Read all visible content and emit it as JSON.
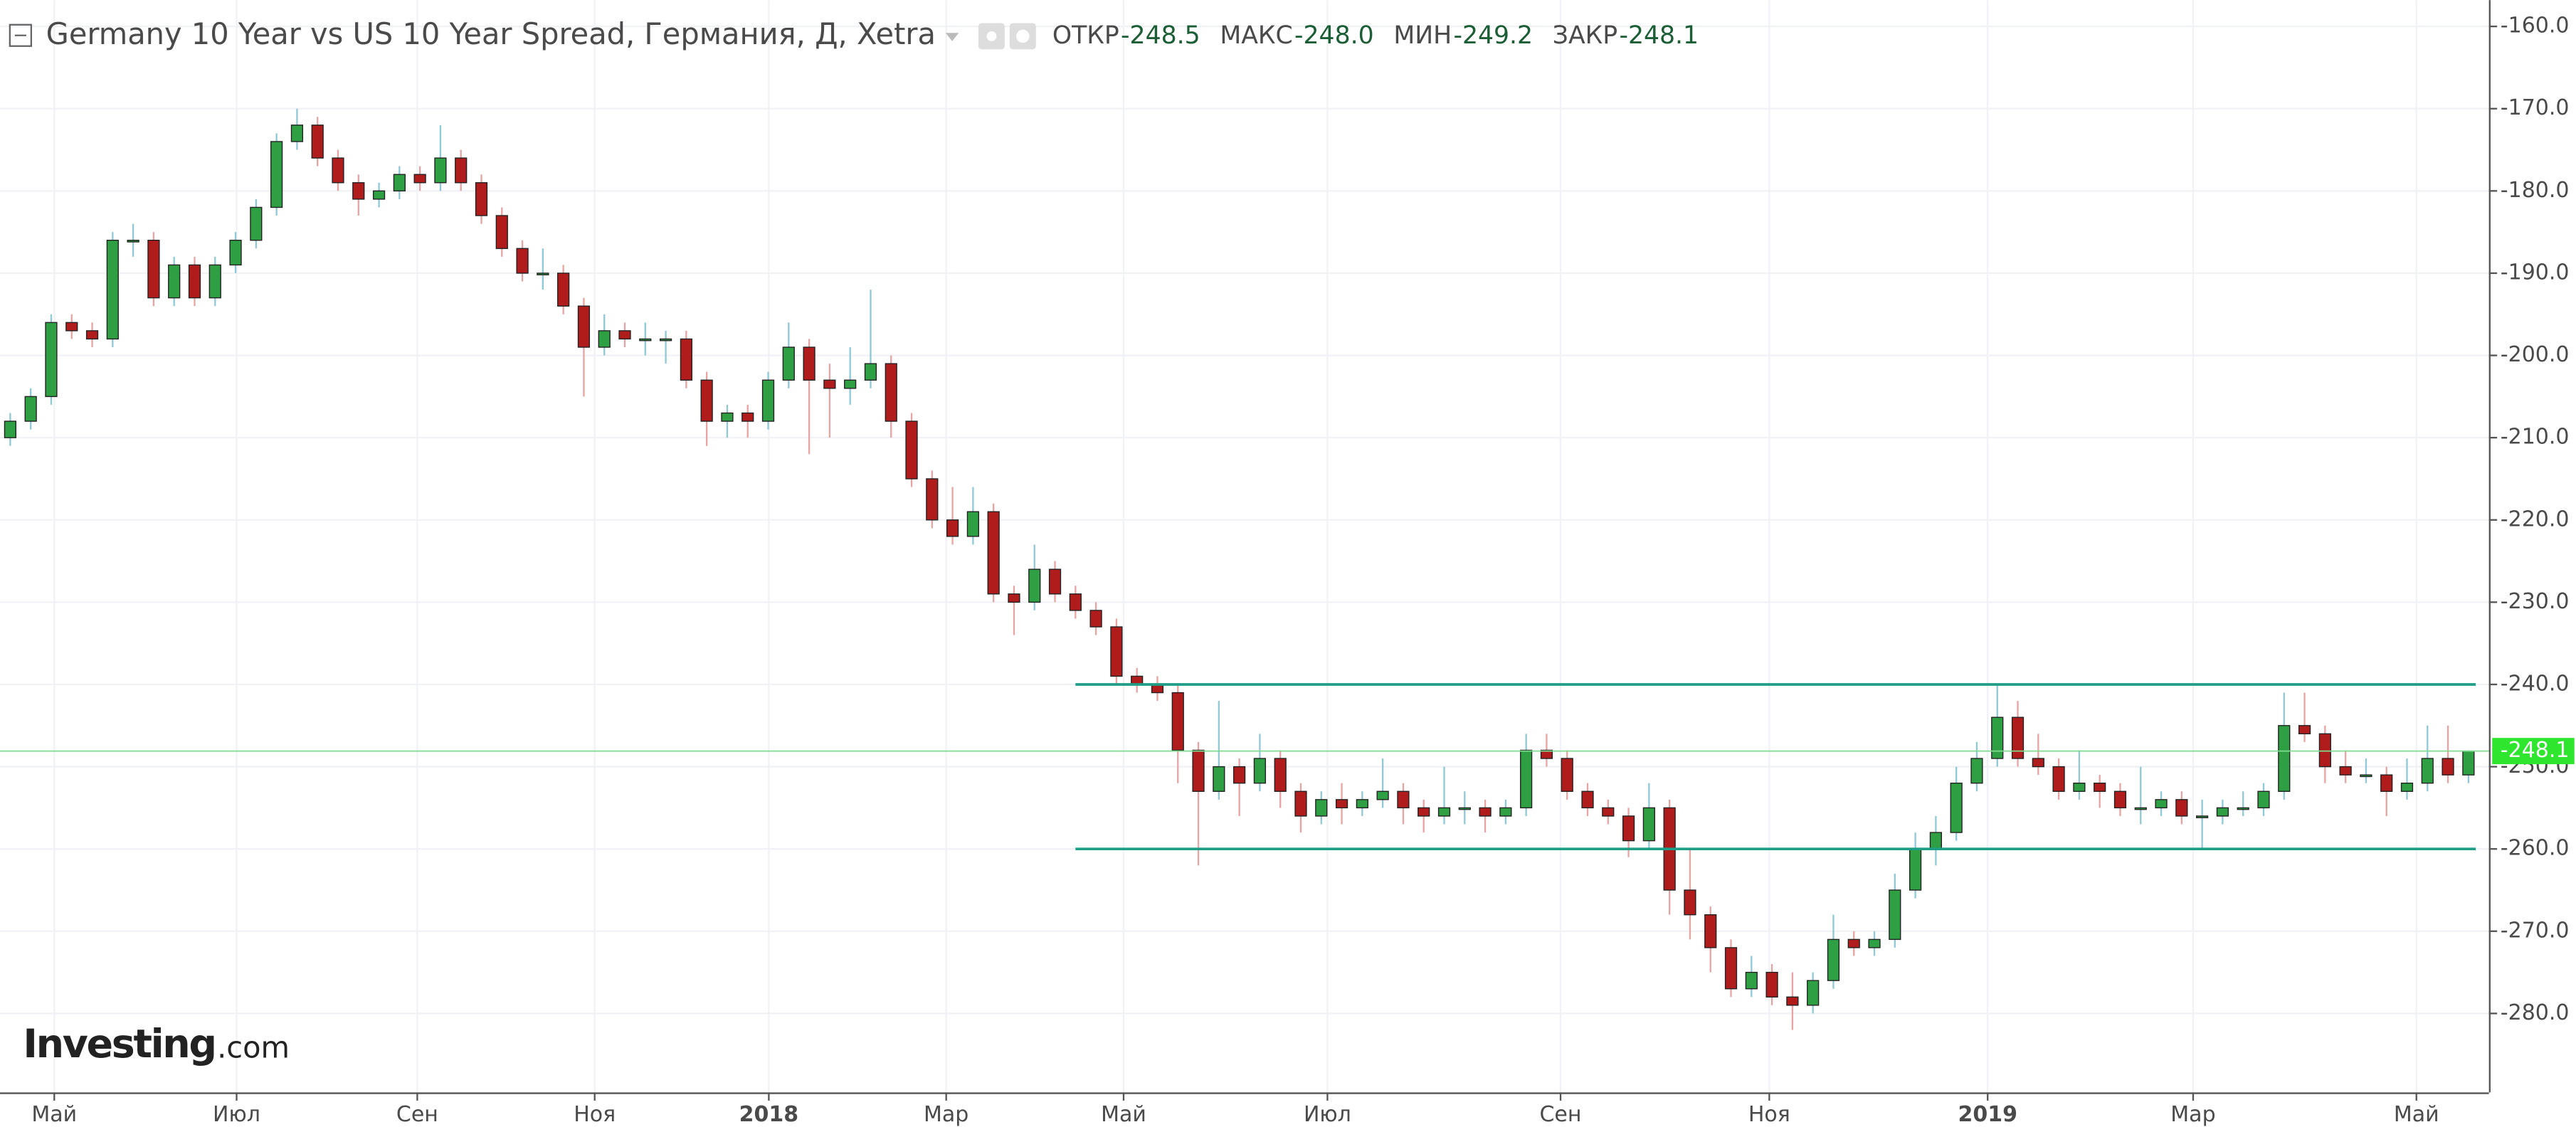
{
  "chart_data": {
    "type": "candlestick",
    "title": "Germany 10 Year vs US 10 Year Spread, Германия, Д, Xetra",
    "stats": [
      {
        "label": "ОТКР",
        "value": "-248.5"
      },
      {
        "label": "МАКС",
        "value": "-248.0"
      },
      {
        "label": "МИН",
        "value": "-249.2"
      },
      {
        "label": "ЗАКР",
        "value": "-248.1"
      }
    ],
    "logo": {
      "name": "Investing",
      "suffix": ".com"
    },
    "up_color": "#2ea043",
    "down_color": "#b01c1c",
    "line_color": "#1e9e86",
    "grid": true,
    "ylim": [
      -289.6,
      -156.8
    ],
    "yticks": [
      {
        "value": -160,
        "label": "-160.0"
      },
      {
        "value": -170,
        "label": "-170.0"
      },
      {
        "value": -180,
        "label": "-180.0"
      },
      {
        "value": -190,
        "label": "-190.0"
      },
      {
        "value": -200,
        "label": "-200.0"
      },
      {
        "value": -210,
        "label": "-210.0"
      },
      {
        "value": -220,
        "label": "-220.0"
      },
      {
        "value": -230,
        "label": "-230.0"
      },
      {
        "value": -240,
        "label": "-240.0"
      },
      {
        "value": -250,
        "label": "-250.0"
      },
      {
        "value": -260,
        "label": "-260.0"
      },
      {
        "value": -270,
        "label": "-270.0"
      },
      {
        "value": -280,
        "label": "-280.0"
      }
    ],
    "xlim": [
      -0.5,
      121
    ],
    "xticks": [
      {
        "value": 2.15,
        "label": "Май"
      },
      {
        "value": 11.05,
        "label": "Июл"
      },
      {
        "value": 19.87,
        "label": "Сен"
      },
      {
        "value": 28.53,
        "label": "Ноя"
      },
      {
        "value": 37.03,
        "label": "2018",
        "strong": true
      },
      {
        "value": 45.69,
        "label": "Мар"
      },
      {
        "value": 54.35,
        "label": "Май"
      },
      {
        "value": 64.3,
        "label": "Июл"
      },
      {
        "value": 75.68,
        "label": "Сен"
      },
      {
        "value": 85.87,
        "label": "Ноя"
      },
      {
        "value": 96.53,
        "label": "2019",
        "strong": true
      },
      {
        "value": 106.56,
        "label": "Мар"
      },
      {
        "value": 117.46,
        "label": "Май"
      }
    ],
    "horizontal_lines": [
      {
        "value": -240,
        "from": 52
      },
      {
        "value": -260,
        "from": 52
      }
    ],
    "last_price": {
      "value": -248.1,
      "label": "-248.1"
    },
    "ohlc": [
      [
        -210,
        -207,
        -211,
        -208
      ],
      [
        -208,
        -204,
        -209,
        -205
      ],
      [
        -205,
        -195,
        -206,
        -196
      ],
      [
        -196,
        -195,
        -198,
        -197
      ],
      [
        -197,
        -196,
        -199,
        -198
      ],
      [
        -198,
        -185,
        -199,
        -186
      ],
      [
        -186,
        -184,
        -188,
        -186
      ],
      [
        -186,
        -185,
        -194,
        -193
      ],
      [
        -193,
        -188,
        -194,
        -189
      ],
      [
        -189,
        -188,
        -194,
        -193
      ],
      [
        -193,
        -188,
        -194,
        -189
      ],
      [
        -189,
        -185,
        -190,
        -186
      ],
      [
        -186,
        -181,
        -187,
        -182
      ],
      [
        -182,
        -173,
        -183,
        -174
      ],
      [
        -174,
        -170,
        -175,
        -172
      ],
      [
        -172,
        -171,
        -177,
        -176
      ],
      [
        -176,
        -175,
        -180,
        -179
      ],
      [
        -179,
        -178,
        -183,
        -181
      ],
      [
        -181,
        -179,
        -182,
        -180
      ],
      [
        -180,
        -177,
        -181,
        -178
      ],
      [
        -178,
        -177,
        -180,
        -179
      ],
      [
        -179,
        -172,
        -180,
        -176
      ],
      [
        -176,
        -175,
        -180,
        -179
      ],
      [
        -179,
        -178,
        -184,
        -183
      ],
      [
        -183,
        -182,
        -188,
        -187
      ],
      [
        -187,
        -186,
        -191,
        -190
      ],
      [
        -190,
        -187,
        -192,
        -190
      ],
      [
        -190,
        -189,
        -195,
        -194
      ],
      [
        -194,
        -193,
        -205,
        -199
      ],
      [
        -199,
        -195,
        -200,
        -197
      ],
      [
        -197,
        -196,
        -199,
        -198
      ],
      [
        -198,
        -196,
        -200,
        -198
      ],
      [
        -198,
        -197,
        -201,
        -198
      ],
      [
        -198,
        -197,
        -204,
        -203
      ],
      [
        -203,
        -202,
        -211,
        -208
      ],
      [
        -208,
        -206,
        -210,
        -207
      ],
      [
        -207,
        -206,
        -210,
        -208
      ],
      [
        -208,
        -202,
        -209,
        -203
      ],
      [
        -203,
        -196,
        -204,
        -199
      ],
      [
        -199,
        -198,
        -212,
        -203
      ],
      [
        -203,
        -201,
        -210,
        -204
      ],
      [
        -204,
        -199,
        -206,
        -203
      ],
      [
        -203,
        -192,
        -204,
        -201
      ],
      [
        -201,
        -200,
        -210,
        -208
      ],
      [
        -208,
        -207,
        -216,
        -215
      ],
      [
        -215,
        -214,
        -221,
        -220
      ],
      [
        -220,
        -216,
        -223,
        -222
      ],
      [
        -222,
        -216,
        -223,
        -219
      ],
      [
        -219,
        -218,
        -230,
        -229
      ],
      [
        -229,
        -228,
        -234,
        -230
      ],
      [
        -230,
        -223,
        -231,
        -226
      ],
      [
        -226,
        -225,
        -230,
        -229
      ],
      [
        -229,
        -228,
        -232,
        -231
      ],
      [
        -231,
        -230,
        -234,
        -233
      ],
      [
        -233,
        -232,
        -240,
        -239
      ],
      [
        -239,
        -238,
        -241,
        -240
      ],
      [
        -240,
        -239,
        -242,
        -241
      ],
      [
        -241,
        -240,
        -252,
        -248
      ],
      [
        -248,
        -247,
        -262,
        -253
      ],
      [
        -253,
        -242,
        -254,
        -250
      ],
      [
        -250,
        -249,
        -256,
        -252
      ],
      [
        -252,
        -246,
        -253,
        -249
      ],
      [
        -249,
        -248,
        -255,
        -253
      ],
      [
        -253,
        -252,
        -258,
        -256
      ],
      [
        -256,
        -253,
        -257,
        -254
      ],
      [
        -254,
        -252,
        -257,
        -255
      ],
      [
        -255,
        -253,
        -256,
        -254
      ],
      [
        -254,
        -249,
        -255,
        -253
      ],
      [
        -253,
        -252,
        -257,
        -255
      ],
      [
        -255,
        -254,
        -258,
        -256
      ],
      [
        -256,
        -250,
        -257,
        -255
      ],
      [
        -255,
        -253,
        -257,
        -255
      ],
      [
        -255,
        -254,
        -258,
        -256
      ],
      [
        -256,
        -254,
        -257,
        -255
      ],
      [
        -255,
        -246,
        -256,
        -248
      ],
      [
        -248,
        -246,
        -250,
        -249
      ],
      [
        -249,
        -248,
        -254,
        -253
      ],
      [
        -253,
        -252,
        -256,
        -255
      ],
      [
        -255,
        -254,
        -257,
        -256
      ],
      [
        -256,
        -255,
        -261,
        -259
      ],
      [
        -259,
        -252,
        -260,
        -255
      ],
      [
        -255,
        -254,
        -268,
        -265
      ],
      [
        -265,
        -260,
        -271,
        -268
      ],
      [
        -268,
        -267,
        -275,
        -272
      ],
      [
        -272,
        -271,
        -278,
        -277
      ],
      [
        -277,
        -273,
        -278,
        -275
      ],
      [
        -275,
        -274,
        -279,
        -278
      ],
      [
        -278,
        -275,
        -282,
        -279
      ],
      [
        -279,
        -275,
        -280,
        -276
      ],
      [
        -276,
        -268,
        -277,
        -271
      ],
      [
        -271,
        -270,
        -273,
        -272
      ],
      [
        -272,
        -270,
        -273,
        -271
      ],
      [
        -271,
        -263,
        -272,
        -265
      ],
      [
        -265,
        -258,
        -266,
        -260
      ],
      [
        -260,
        -256,
        -262,
        -258
      ],
      [
        -258,
        -250,
        -259,
        -252
      ],
      [
        -252,
        -247,
        -253,
        -249
      ],
      [
        -249,
        -240,
        -250,
        -244
      ],
      [
        -244,
        -242,
        -250,
        -249
      ],
      [
        -249,
        -246,
        -251,
        -250
      ],
      [
        -250,
        -249,
        -254,
        -253
      ],
      [
        -253,
        -248,
        -254,
        -252
      ],
      [
        -252,
        -251,
        -255,
        -253
      ],
      [
        -253,
        -252,
        -256,
        -255
      ],
      [
        -255,
        -250,
        -257,
        -255
      ],
      [
        -255,
        -253,
        -256,
        -254
      ],
      [
        -254,
        -253,
        -257,
        -256
      ],
      [
        -256,
        -254,
        -260,
        -256
      ],
      [
        -256,
        -254,
        -257,
        -255
      ],
      [
        -255,
        -253,
        -256,
        -255
      ],
      [
        -255,
        -252,
        -256,
        -253
      ],
      [
        -253,
        -241,
        -254,
        -245
      ],
      [
        -245,
        -241,
        -247,
        -246
      ],
      [
        -246,
        -245,
        -252,
        -250
      ],
      [
        -250,
        -248,
        -252,
        -251
      ],
      [
        -251,
        -249,
        -252,
        -251
      ],
      [
        -251,
        -250,
        -256,
        -253
      ],
      [
        -253,
        -249,
        -254,
        -252
      ],
      [
        -252,
        -245,
        -253,
        -249
      ],
      [
        -249,
        -245,
        -252,
        -251
      ],
      [
        -251,
        -248,
        -252,
        -248.1
      ]
    ]
  }
}
